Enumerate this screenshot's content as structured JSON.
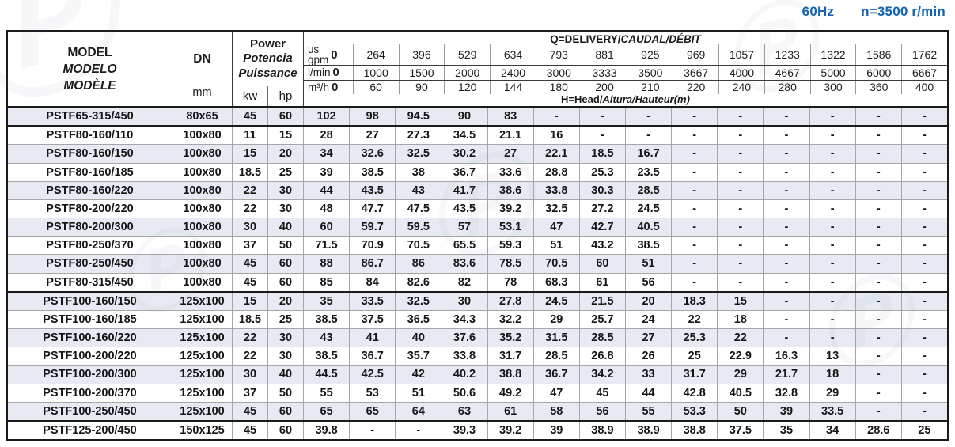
{
  "title": {
    "frequency": "60Hz",
    "speed": "n=3500 r/min"
  },
  "watermark": {
    "glyph": "Ⓟ"
  },
  "colors": {
    "accent_blue": "#1264b2",
    "row_shade": "#e7eaf3",
    "border_dark": "#1a1a1a",
    "grid_gray": "#a6a6a6"
  },
  "table": {
    "header": {
      "model_lines": [
        "MODEL",
        "MODELO",
        "MODÈLE"
      ],
      "dn_label": "DN",
      "dn_unit": "mm",
      "power_lines": [
        "Power",
        "Potencia",
        "Puissance"
      ],
      "power_units": [
        "kw",
        "hp"
      ],
      "delivery_title_en": "Q=DELIVERY/",
      "delivery_title_intl": "CAUDAL/DÉBIT",
      "head_title_en": "H=Head/",
      "head_title_intl": "Altura/Hauteur(m)",
      "flow_rows": [
        {
          "label_top": "us",
          "label": "gpm",
          "zero": "0",
          "values": [
            "264",
            "396",
            "529",
            "634",
            "793",
            "881",
            "925",
            "969",
            "1057",
            "1233",
            "1322",
            "1586",
            "1762"
          ]
        },
        {
          "label": "l/min",
          "zero": "0",
          "values": [
            "1000",
            "1500",
            "2000",
            "2400",
            "3000",
            "3333",
            "3500",
            "3667",
            "4000",
            "4667",
            "5000",
            "6000",
            "6667"
          ]
        },
        {
          "label": "m³/h",
          "zero": "0",
          "values": [
            "60",
            "90",
            "120",
            "144",
            "180",
            "200",
            "210",
            "220",
            "240",
            "280",
            "300",
            "360",
            "400"
          ]
        }
      ]
    },
    "rows": [
      {
        "model": "PSTF65-315/450",
        "dn": "80x65",
        "kw": "45",
        "hp": "60",
        "heads": [
          "102",
          "98",
          "94.5",
          "90",
          "83",
          "-",
          "-",
          "-",
          "-",
          "-",
          "-",
          "-",
          "-",
          "-"
        ],
        "group_end": true
      },
      {
        "model": "PSTF80-160/110",
        "dn": "100x80",
        "kw": "11",
        "hp": "15",
        "heads": [
          "28",
          "27",
          "27.3",
          "34.5",
          "21.1",
          "16",
          "-",
          "-",
          "-",
          "-",
          "-",
          "-",
          "-",
          "-"
        ],
        "group_end": false
      },
      {
        "model": "PSTF80-160/150",
        "dn": "100x80",
        "kw": "15",
        "hp": "20",
        "heads": [
          "34",
          "32.6",
          "32.5",
          "30.2",
          "27",
          "22.1",
          "18.5",
          "16.7",
          "-",
          "-",
          "-",
          "-",
          "-",
          "-"
        ],
        "group_end": false
      },
      {
        "model": "PSTF80-160/185",
        "dn": "100x80",
        "kw": "18.5",
        "hp": "25",
        "heads": [
          "39",
          "38.5",
          "38",
          "36.7",
          "33.6",
          "28.8",
          "25.3",
          "23.5",
          "-",
          "-",
          "-",
          "-",
          "-",
          "-"
        ],
        "group_end": false
      },
      {
        "model": "PSTF80-160/220",
        "dn": "100x80",
        "kw": "22",
        "hp": "30",
        "heads": [
          "44",
          "43.5",
          "43",
          "41.7",
          "38.6",
          "33.8",
          "30.3",
          "28.5",
          "-",
          "-",
          "-",
          "-",
          "-",
          "-"
        ],
        "group_end": false
      },
      {
        "model": "PSTF80-200/220",
        "dn": "100x80",
        "kw": "22",
        "hp": "30",
        "heads": [
          "48",
          "47.7",
          "47.5",
          "43.5",
          "39.2",
          "32.5",
          "27.2",
          "24.5",
          "-",
          "-",
          "-",
          "-",
          "-",
          "-"
        ],
        "group_end": false
      },
      {
        "model": "PSTF80-200/300",
        "dn": "100x80",
        "kw": "30",
        "hp": "40",
        "heads": [
          "60",
          "59.7",
          "59.5",
          "57",
          "53.1",
          "47",
          "42.7",
          "40.5",
          "-",
          "-",
          "-",
          "-",
          "-",
          "-"
        ],
        "group_end": false
      },
      {
        "model": "PSTF80-250/370",
        "dn": "100x80",
        "kw": "37",
        "hp": "50",
        "heads": [
          "71.5",
          "70.9",
          "70.5",
          "65.5",
          "59.3",
          "51",
          "43.2",
          "38.5",
          "-",
          "-",
          "-",
          "-",
          "-",
          "-"
        ],
        "group_end": false
      },
      {
        "model": "PSTF80-250/450",
        "dn": "100x80",
        "kw": "45",
        "hp": "60",
        "heads": [
          "88",
          "86.7",
          "86",
          "83.6",
          "78.5",
          "70.5",
          "60",
          "51",
          "-",
          "-",
          "-",
          "-",
          "-",
          "-"
        ],
        "group_end": false
      },
      {
        "model": "PSTF80-315/450",
        "dn": "100x80",
        "kw": "45",
        "hp": "60",
        "heads": [
          "85",
          "84",
          "82.6",
          "82",
          "78",
          "68.3",
          "61",
          "56",
          "-",
          "-",
          "-",
          "-",
          "-",
          "-"
        ],
        "group_end": true
      },
      {
        "model": "PSTF100-160/150",
        "dn": "125x100",
        "kw": "15",
        "hp": "20",
        "heads": [
          "35",
          "33.5",
          "32.5",
          "30",
          "27.8",
          "24.5",
          "21.5",
          "20",
          "18.3",
          "15",
          "-",
          "-",
          "-",
          "-"
        ],
        "group_end": false
      },
      {
        "model": "PSTF100-160/185",
        "dn": "125x100",
        "kw": "18.5",
        "hp": "25",
        "heads": [
          "38.5",
          "37.5",
          "36.5",
          "34.3",
          "32.2",
          "29",
          "25.7",
          "24",
          "22",
          "18",
          "-",
          "-",
          "-",
          "-"
        ],
        "group_end": false
      },
      {
        "model": "PSTF100-160/220",
        "dn": "125x100",
        "kw": "22",
        "hp": "30",
        "heads": [
          "43",
          "41",
          "40",
          "37.6",
          "35.2",
          "31.5",
          "28.5",
          "27",
          "25.3",
          "22",
          "-",
          "-",
          "-",
          "-"
        ],
        "group_end": false
      },
      {
        "model": "PSTF100-200/220",
        "dn": "125x100",
        "kw": "22",
        "hp": "30",
        "heads": [
          "38.5",
          "36.7",
          "35.7",
          "33.8",
          "31.7",
          "28.5",
          "26.8",
          "26",
          "25",
          "22.9",
          "16.3",
          "13",
          "-",
          "-"
        ],
        "group_end": false
      },
      {
        "model": "PSTF100-200/300",
        "dn": "125x100",
        "kw": "30",
        "hp": "40",
        "heads": [
          "44.5",
          "42.5",
          "42",
          "40.2",
          "38.8",
          "36.7",
          "34.2",
          "33",
          "31.7",
          "29",
          "21.7",
          "18",
          "-",
          "-"
        ],
        "group_end": false
      },
      {
        "model": "PSTF100-200/370",
        "dn": "125x100",
        "kw": "37",
        "hp": "50",
        "heads": [
          "55",
          "53",
          "51",
          "50.6",
          "49.2",
          "47",
          "45",
          "44",
          "42.8",
          "40.5",
          "32.8",
          "29",
          "-",
          "-"
        ],
        "group_end": false
      },
      {
        "model": "PSTF100-250/450",
        "dn": "125x100",
        "kw": "45",
        "hp": "60",
        "heads": [
          "65",
          "65",
          "64",
          "63",
          "61",
          "58",
          "56",
          "55",
          "53.3",
          "50",
          "39",
          "33.5",
          "-",
          "-"
        ],
        "group_end": true
      },
      {
        "model": "PSTF125-200/450",
        "dn": "150x125",
        "kw": "45",
        "hp": "60",
        "heads": [
          "39.8",
          "-",
          "-",
          "39.3",
          "39.2",
          "39",
          "38.9",
          "38.9",
          "38.8",
          "37.5",
          "35",
          "34",
          "28.6",
          "25"
        ],
        "group_end": false
      }
    ]
  }
}
